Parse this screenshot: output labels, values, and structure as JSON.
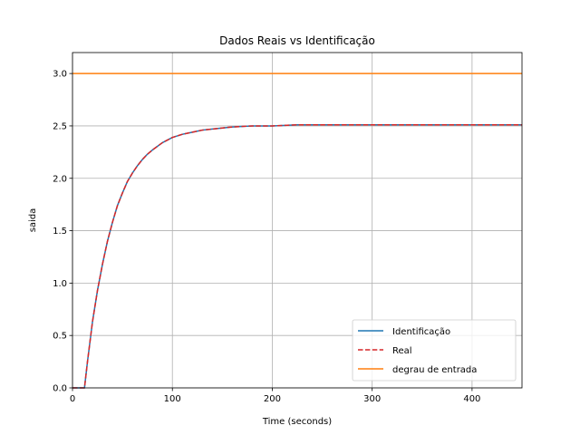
{
  "chart_data": {
    "type": "line",
    "title": "Dados Reais vs Identificação",
    "xlabel": "Time (seconds)",
    "ylabel": "saida",
    "xlim": [
      0,
      450
    ],
    "ylim": [
      0,
      3.2
    ],
    "xticks": [
      0,
      100,
      200,
      300,
      400
    ],
    "xtick_labels": [
      "0",
      "100",
      "200",
      "300",
      "400"
    ],
    "yticks": [
      0,
      0.5,
      1.0,
      1.5,
      2.0,
      2.5,
      3.0
    ],
    "ytick_labels": [
      "0.0",
      "0.5",
      "1.0",
      "1.5",
      "2.0",
      "2.5",
      "3.0"
    ],
    "grid": true,
    "legend_position": "lower-right",
    "series": [
      {
        "name": "Identificação",
        "color": "#1f77b4",
        "style": "solid",
        "x": [
          0,
          10,
          12,
          15,
          20,
          25,
          30,
          35,
          40,
          45,
          50,
          55,
          60,
          65,
          70,
          75,
          80,
          90,
          100,
          110,
          120,
          130,
          140,
          150,
          160,
          170,
          180,
          200,
          225,
          250,
          300,
          350,
          400,
          450
        ],
        "y": [
          0,
          0,
          0,
          0.25,
          0.63,
          0.93,
          1.18,
          1.4,
          1.58,
          1.74,
          1.86,
          1.97,
          2.05,
          2.12,
          2.18,
          2.23,
          2.27,
          2.34,
          2.39,
          2.42,
          2.44,
          2.46,
          2.47,
          2.48,
          2.49,
          2.495,
          2.5,
          2.5,
          2.51,
          2.51,
          2.51,
          2.51,
          2.51,
          2.51
        ]
      },
      {
        "name": "Real",
        "color": "#d62728",
        "style": "dashed",
        "x": [
          0,
          10,
          12,
          15,
          20,
          25,
          30,
          35,
          40,
          45,
          50,
          55,
          60,
          65,
          70,
          75,
          80,
          90,
          100,
          110,
          120,
          130,
          140,
          150,
          160,
          170,
          180,
          200,
          225,
          250,
          300,
          350,
          400,
          450
        ],
        "y": [
          0,
          0,
          0,
          0.25,
          0.63,
          0.93,
          1.18,
          1.4,
          1.58,
          1.74,
          1.86,
          1.97,
          2.05,
          2.12,
          2.18,
          2.23,
          2.27,
          2.34,
          2.39,
          2.42,
          2.44,
          2.46,
          2.47,
          2.48,
          2.49,
          2.495,
          2.5,
          2.5,
          2.51,
          2.51,
          2.51,
          2.51,
          2.51,
          2.51
        ]
      },
      {
        "name": "degrau de entrada",
        "color": "#ff7f0e",
        "style": "solid",
        "x": [
          0,
          450
        ],
        "y": [
          3.0,
          3.0
        ]
      }
    ]
  }
}
